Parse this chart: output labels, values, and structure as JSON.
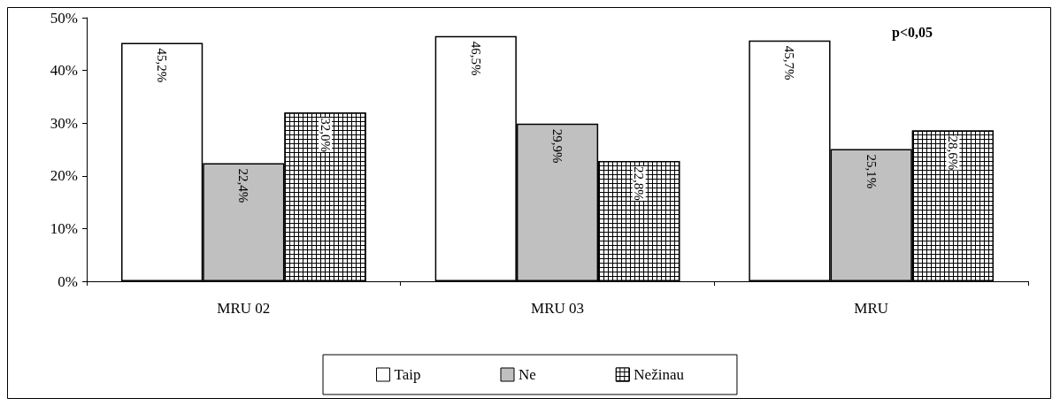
{
  "chart_data": {
    "type": "bar",
    "categories": [
      "MRU 02",
      "MRU 03",
      "MRU"
    ],
    "series": [
      {
        "name": "Taip",
        "color": "#ffffff",
        "values": [
          45.2,
          46.5,
          45.7
        ],
        "value_labels": [
          "45,2%",
          "46,5%",
          "45,7%"
        ]
      },
      {
        "name": "Ne",
        "color": "#c0c0c0",
        "values": [
          22.4,
          29.9,
          25.1
        ],
        "value_labels": [
          "22,4%",
          "29,9%",
          "25,1%"
        ]
      },
      {
        "name": "Nežinau",
        "color": "#000000",
        "values": [
          32.0,
          22.8,
          28.6
        ],
        "value_labels": [
          "32,0%",
          "22,8%",
          "28,6%"
        ]
      }
    ],
    "ylim": [
      0,
      50
    ],
    "yticks": [
      {
        "value": 0,
        "label": "0%"
      },
      {
        "value": 10,
        "label": "10%"
      },
      {
        "value": 20,
        "label": "20%"
      },
      {
        "value": 30,
        "label": "30%"
      },
      {
        "value": 40,
        "label": "40%"
      },
      {
        "value": 50,
        "label": "50%"
      }
    ],
    "annotations": [
      "p<0,05"
    ],
    "grid": false,
    "legend": "bottom"
  }
}
